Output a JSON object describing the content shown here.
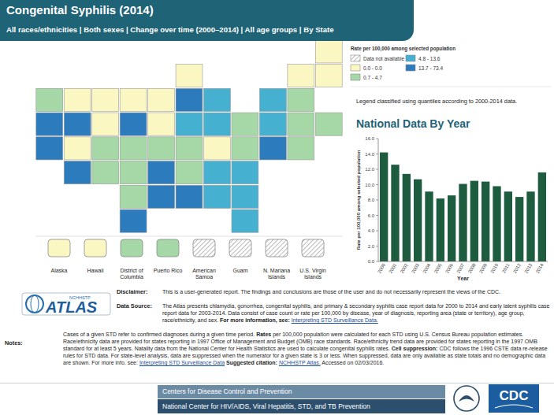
{
  "header": {
    "title": "Congenital Syphilis (2014)",
    "subtitle": "All races/ethnicities | Both sexes | Change over time (2000–2014) | All age groups | By State"
  },
  "legend": {
    "title": "Rate per 100,000 among selected population",
    "classes": [
      {
        "label": "Data not available",
        "color": "#ffffff",
        "hatch": true
      },
      {
        "label": "0.0 - 0.0",
        "color": "#fbf7c3"
      },
      {
        "label": "0.7 - 4.7",
        "color": "#a6d7a6"
      },
      {
        "label": "4.8 - 13.6",
        "color": "#45b0cf"
      },
      {
        "label": "13.7 - 73.4",
        "color": "#2b7bbd"
      }
    ],
    "note": "Legend classified using quantiles according to 2000-2014 data."
  },
  "map": {
    "cells": [
      [
        null,
        null,
        null,
        null,
        null,
        null,
        null,
        null,
        null,
        null,
        1
      ],
      [
        null,
        null,
        null,
        null,
        null,
        1,
        null,
        null,
        null,
        1,
        1
      ],
      [
        2,
        1,
        1,
        1,
        1,
        4,
        3,
        null,
        3,
        2,
        null
      ],
      [
        4,
        4,
        1,
        4,
        1,
        3,
        3,
        2,
        3,
        2,
        2
      ],
      [
        4,
        1,
        2,
        2,
        2,
        2,
        1,
        2,
        4,
        2,
        null
      ],
      [
        null,
        4,
        2,
        2,
        4,
        2,
        3,
        3,
        null,
        null,
        null
      ],
      [
        null,
        null,
        null,
        2,
        4,
        4,
        3,
        3,
        null,
        null,
        null
      ],
      [
        null,
        null,
        null,
        4,
        null,
        null,
        null,
        3,
        null,
        null,
        null
      ]
    ],
    "territories": [
      {
        "label": "Alaska",
        "class": 1
      },
      {
        "label": "Hawaii",
        "class": 1
      },
      {
        "label": "District of Columbia",
        "class": 2
      },
      {
        "label": "Puerto Rico",
        "class": 2
      },
      {
        "label": "American Samoa",
        "class": 0
      },
      {
        "label": "Guam",
        "class": 0
      },
      {
        "label": "N. Mariana Islands",
        "class": 0
      },
      {
        "label": "U.S. Virgin Islands",
        "class": 0
      }
    ]
  },
  "chart_data": {
    "type": "bar",
    "title": "National Data By Year",
    "x_label": "Year",
    "y_label": "Rate per 100,000 among selected population",
    "categories": [
      "2000",
      "2001",
      "2002",
      "2003",
      "2004",
      "2005",
      "2006",
      "2007",
      "2008",
      "2009",
      "2010",
      "2011",
      "2012",
      "2013",
      "2014"
    ],
    "values": [
      14.2,
      12.6,
      11.4,
      10.7,
      9.1,
      8.2,
      8.6,
      10.1,
      10.5,
      10.4,
      9.8,
      9.1,
      8.4,
      9.1,
      11.6
    ],
    "color": "#1e5c3f",
    "ylim": [
      0,
      16
    ],
    "yticks": [
      {
        "value": 0,
        "label": "0.0"
      },
      {
        "value": 2,
        "label": "2.0"
      },
      {
        "value": 4,
        "label": "4.0"
      },
      {
        "value": 6,
        "label": "6.0"
      },
      {
        "value": 8,
        "label": "8.0"
      },
      {
        "value": 10,
        "label": "10.0"
      },
      {
        "value": 12,
        "label": "12.0"
      },
      {
        "value": 14,
        "label": "14.0"
      },
      {
        "value": 16,
        "label": "16.0"
      }
    ],
    "grid": false
  },
  "logo": {
    "small": "NCHHSTP",
    "large": "ATLAS"
  },
  "disclaimer": {
    "label": "Disclaimer:",
    "text": "This is a user-generated report. The findings and conclusions are those of the user and do not necessarily represent the views of the CDC."
  },
  "data_source": {
    "label": "Data Source:",
    "segments": [
      {
        "text": "The Atlas presents chlamydia, gonorrhea, congenital syphilis, and primary & secondary syphilis case report data for 2000 to 2014 and early latent syphilis case report data for 2003-2014. Data consist of case count or rate per 100,000 by disease, year of diagnosis, reporting area (state or territory), age group, race/ethnicity, and sex. "
      },
      {
        "text": "For more information, see: ",
        "bold": true
      },
      {
        "text": "Interpreting STD Surveillance Data.",
        "link": true
      }
    ]
  },
  "notes": {
    "label": "Notes:",
    "segments": [
      {
        "text": "Cases of a given STD refer to confirmed diagnoses during a given time period. "
      },
      {
        "text": "Rates",
        "bold": true
      },
      {
        "text": " per 100,000 population were calculated for each STD using U.S. Census Bureau population estimates. Race/ethnicity data are provided for states reporting in 1997 Office of Management and Budget (OMB) race standards. Race/ethnicity trend data are provided for states reporting in the 1997 OMB standard for at least 5 years. Natality data from the National Center for Health Statistics are used to calculate congenital syphilis rates. "
      },
      {
        "text": "Cell suppression:",
        "bold": true
      },
      {
        "text": " CDC follows the 1996 CSTE data re-release rules for STD data. For state-level analysis, data are suppressed when the numerator for a given state is 3 or less. When suppressed, data are only available as state totals and no demographic data are shown. For more info. see: "
      },
      {
        "text": "Interpreting STD Surveillance Data",
        "link": true
      },
      {
        "text": " Suggested citation: ",
        "bold": true
      },
      {
        "text": "NCHHSTP Atlas.",
        "link": true
      },
      {
        "text": " Accessed on 02/03/2016."
      }
    ]
  },
  "footer": {
    "lines": [
      "Centers for Disease Control and Prevention",
      "National Center for HIV/AIDS, Viral Hepatitis, STD, and TB Prevention"
    ],
    "logo": "CDC"
  }
}
